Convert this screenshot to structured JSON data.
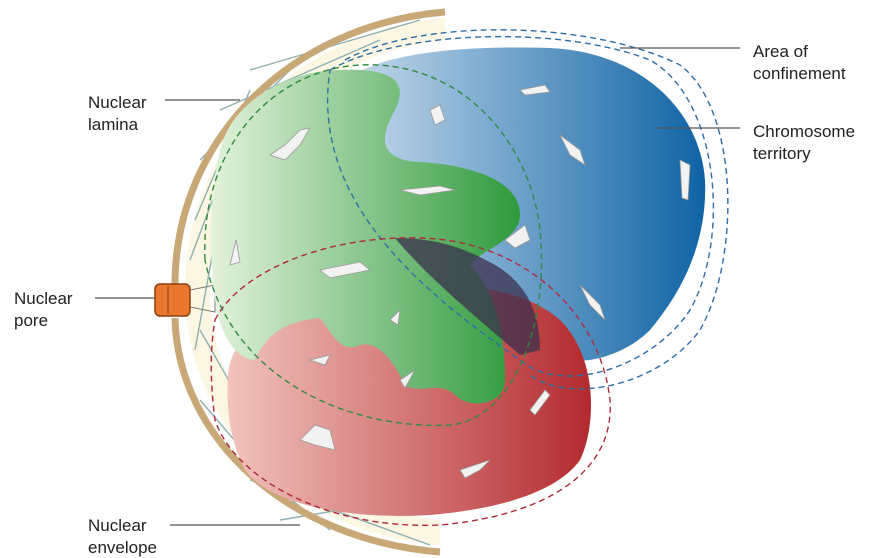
{
  "labels": [
    {
      "lines": [
        "Area of",
        "confinement"
      ]
    },
    {
      "lines": [
        "Chromosome",
        "territory"
      ]
    },
    {
      "lines": [
        "Nuclear",
        "lamina"
      ]
    },
    {
      "lines": [
        "Nuclear",
        "pore"
      ]
    },
    {
      "lines": [
        "Nuclear",
        "envelope"
      ]
    }
  ]
}
